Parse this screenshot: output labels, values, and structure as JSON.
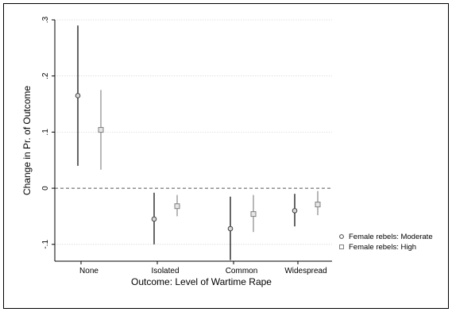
{
  "chart_data": {
    "type": "scatter",
    "title": "",
    "xlabel": "Outcome: Level of Wartime Rape",
    "ylabel": "Change in Pr. of Outcome",
    "categories": [
      "None",
      "Isolated",
      "Common",
      "Widespread"
    ],
    "y_ticks": [
      ".3",
      ".2",
      ".1",
      "0",
      "-.1"
    ],
    "y_tick_values": [
      0.3,
      0.2,
      0.1,
      0,
      -0.1
    ],
    "ylim": [
      -0.13,
      0.3
    ],
    "reference_line_y": 0,
    "grid": "horizontal",
    "legend_position": "right",
    "series": [
      {
        "name": "Female rebels: Moderate",
        "marker": "circle",
        "color": "#404040",
        "values": [
          0.165,
          -0.055,
          -0.072,
          -0.04
        ],
        "ci_low": [
          0.04,
          -0.1,
          -0.128,
          -0.068
        ],
        "ci_high": [
          0.29,
          -0.008,
          -0.015,
          -0.01
        ]
      },
      {
        "name": "Female rebels: High",
        "marker": "square",
        "color": "#a6a6a6",
        "values": [
          0.104,
          -0.032,
          -0.046,
          -0.029
        ],
        "ci_low": [
          0.033,
          -0.05,
          -0.078,
          -0.048
        ],
        "ci_high": [
          0.175,
          -0.012,
          -0.012,
          -0.005
        ]
      }
    ]
  }
}
